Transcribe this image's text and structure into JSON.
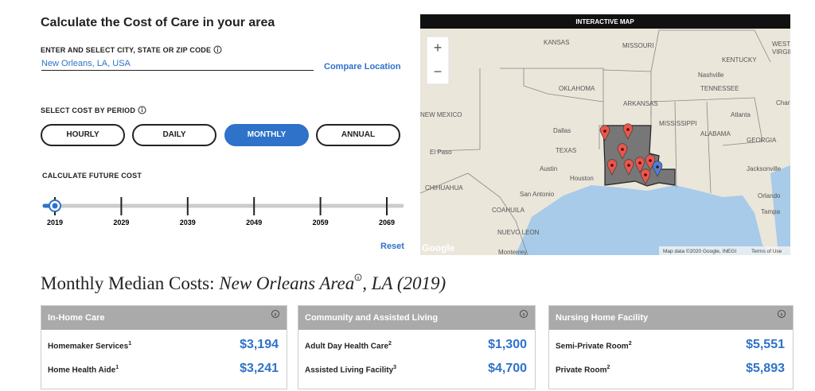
{
  "calculator": {
    "title": "Calculate the Cost of Care in your area",
    "location_label": "ENTER AND SELECT CITY, STATE OR ZIP CODE",
    "location_value": "New Orleans, LA, USA",
    "compare": "Compare Location",
    "period_label": "SELECT COST BY PERIOD",
    "periods": [
      "HOURLY",
      "DAILY",
      "MONTHLY",
      "ANNUAL"
    ],
    "selected_period": 2,
    "future_label": "CALCULATE FUTURE COST",
    "years": [
      "2019",
      "2029",
      "2039",
      "2049",
      "2059",
      "2069"
    ],
    "reset": "Reset"
  },
  "map": {
    "header": "INTERACTIVE MAP",
    "zoom_in": "+",
    "zoom_out": "−",
    "labels": [
      "KANSAS",
      "MISSOURI",
      "KENTUCKY",
      "WEST",
      "VIRGINIA",
      "Nashville",
      "TENNESSEE",
      "OKLAHOMA",
      "ARKANSAS",
      "Charlotte",
      "NEW MEXICO",
      "MISSISSIPPI",
      "Atlanta",
      "Dallas",
      "ALABAMA",
      "GEORGIA",
      "El Paso",
      "TEXAS",
      "Austin",
      "Jacksonville",
      "Houston",
      "CHIHUAHUA",
      "San Antonio",
      "Orlando",
      "COAHUILA",
      "Tampa",
      "NUEVO LEON",
      "Monterrey",
      "Google"
    ],
    "attribution": "Map data ©2020 Google, INEGI",
    "terms": "Terms of Use"
  },
  "costs": {
    "heading": "Monthly Median Costs:",
    "area": "New Orleans Area",
    "state": ", LA (2019)",
    "cards": [
      {
        "title": "In-Home Care",
        "items": [
          {
            "name": "Homemaker Services",
            "sup": "1",
            "value": "$3,194"
          },
          {
            "name": "Home Health Aide",
            "sup": "1",
            "value": "$3,241"
          }
        ]
      },
      {
        "title": "Community and Assisted Living",
        "items": [
          {
            "name": "Adult Day Health Care",
            "sup": "2",
            "value": "$1,300"
          },
          {
            "name": "Assisted Living Facility",
            "sup": "3",
            "value": "$4,700"
          }
        ]
      },
      {
        "title": "Nursing Home Facility",
        "items": [
          {
            "name": "Semi-Private Room",
            "sup": "2",
            "value": "$5,551"
          },
          {
            "name": "Private Room",
            "sup": "2",
            "value": "$5,893"
          }
        ]
      }
    ]
  }
}
